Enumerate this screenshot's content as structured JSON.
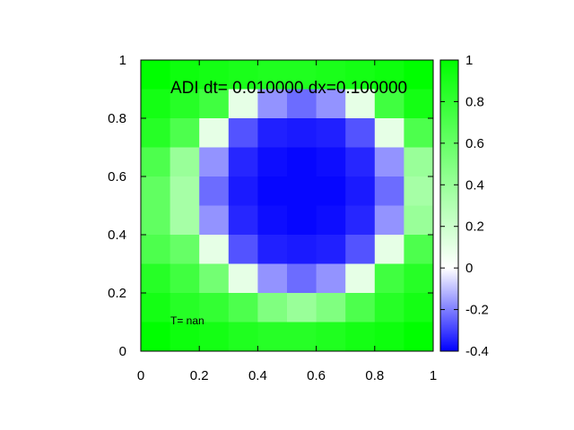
{
  "chart_data": {
    "type": "heatmap",
    "title": "ADI dt= 0.010000 dx=0.100000",
    "annotation": "T= nan",
    "xlim": [
      0,
      1
    ],
    "ylim": [
      0,
      1
    ],
    "x_ticks": [
      "0",
      "0.2",
      "0.4",
      "0.6",
      "0.8",
      "1"
    ],
    "y_ticks": [
      "0",
      "0.2",
      "0.4",
      "0.6",
      "0.8",
      "1"
    ],
    "colorbar": {
      "range": [
        -0.4,
        1
      ],
      "ticks": [
        "-0.4",
        "-0.2",
        "0",
        "0.2",
        "0.4",
        "0.6",
        "0.8",
        "1"
      ],
      "colors": {
        "low": "#0000ff",
        "zero": "#ffffff",
        "high": "#00ff00"
      }
    },
    "grid_rows_top_to_bottom": [
      [
        1.0,
        0.95,
        0.92,
        0.9,
        0.88,
        0.88,
        0.9,
        0.92,
        0.95,
        1.0
      ],
      [
        0.92,
        0.85,
        0.75,
        0.1,
        -0.17,
        -0.23,
        -0.17,
        0.1,
        0.75,
        0.92
      ],
      [
        0.85,
        0.7,
        0.1,
        -0.27,
        -0.35,
        -0.36,
        -0.35,
        -0.27,
        0.1,
        0.7
      ],
      [
        0.7,
        0.4,
        -0.17,
        -0.34,
        -0.38,
        -0.39,
        -0.38,
        -0.34,
        -0.17,
        0.4
      ],
      [
        0.62,
        0.35,
        -0.23,
        -0.36,
        -0.39,
        -0.39,
        -0.39,
        -0.36,
        -0.23,
        0.35
      ],
      [
        0.62,
        0.35,
        -0.17,
        -0.34,
        -0.38,
        -0.39,
        -0.38,
        -0.34,
        -0.17,
        0.4
      ],
      [
        0.7,
        0.6,
        0.1,
        -0.27,
        -0.35,
        -0.36,
        -0.35,
        -0.27,
        0.1,
        0.7
      ],
      [
        0.85,
        0.75,
        0.55,
        0.1,
        -0.17,
        -0.23,
        -0.17,
        0.1,
        0.75,
        0.85
      ],
      [
        0.92,
        0.85,
        0.8,
        0.7,
        0.5,
        0.4,
        0.5,
        0.7,
        0.85,
        0.92
      ],
      [
        1.0,
        0.95,
        0.92,
        0.88,
        0.85,
        0.85,
        0.88,
        0.92,
        0.95,
        1.0
      ]
    ]
  }
}
